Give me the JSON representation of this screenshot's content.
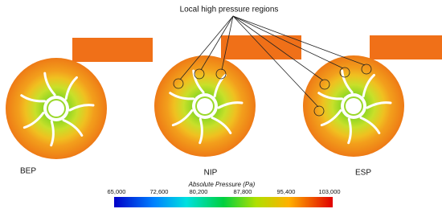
{
  "annotation": "Local high pressure regions",
  "panels": [
    "BEP",
    "NIP",
    "ESP"
  ],
  "colorbar": {
    "title": "Absolute Pressure (Pa)",
    "ticks": [
      "65,000",
      "72,600",
      "80,200",
      "87,800",
      "95,400",
      "103,000"
    ]
  }
}
